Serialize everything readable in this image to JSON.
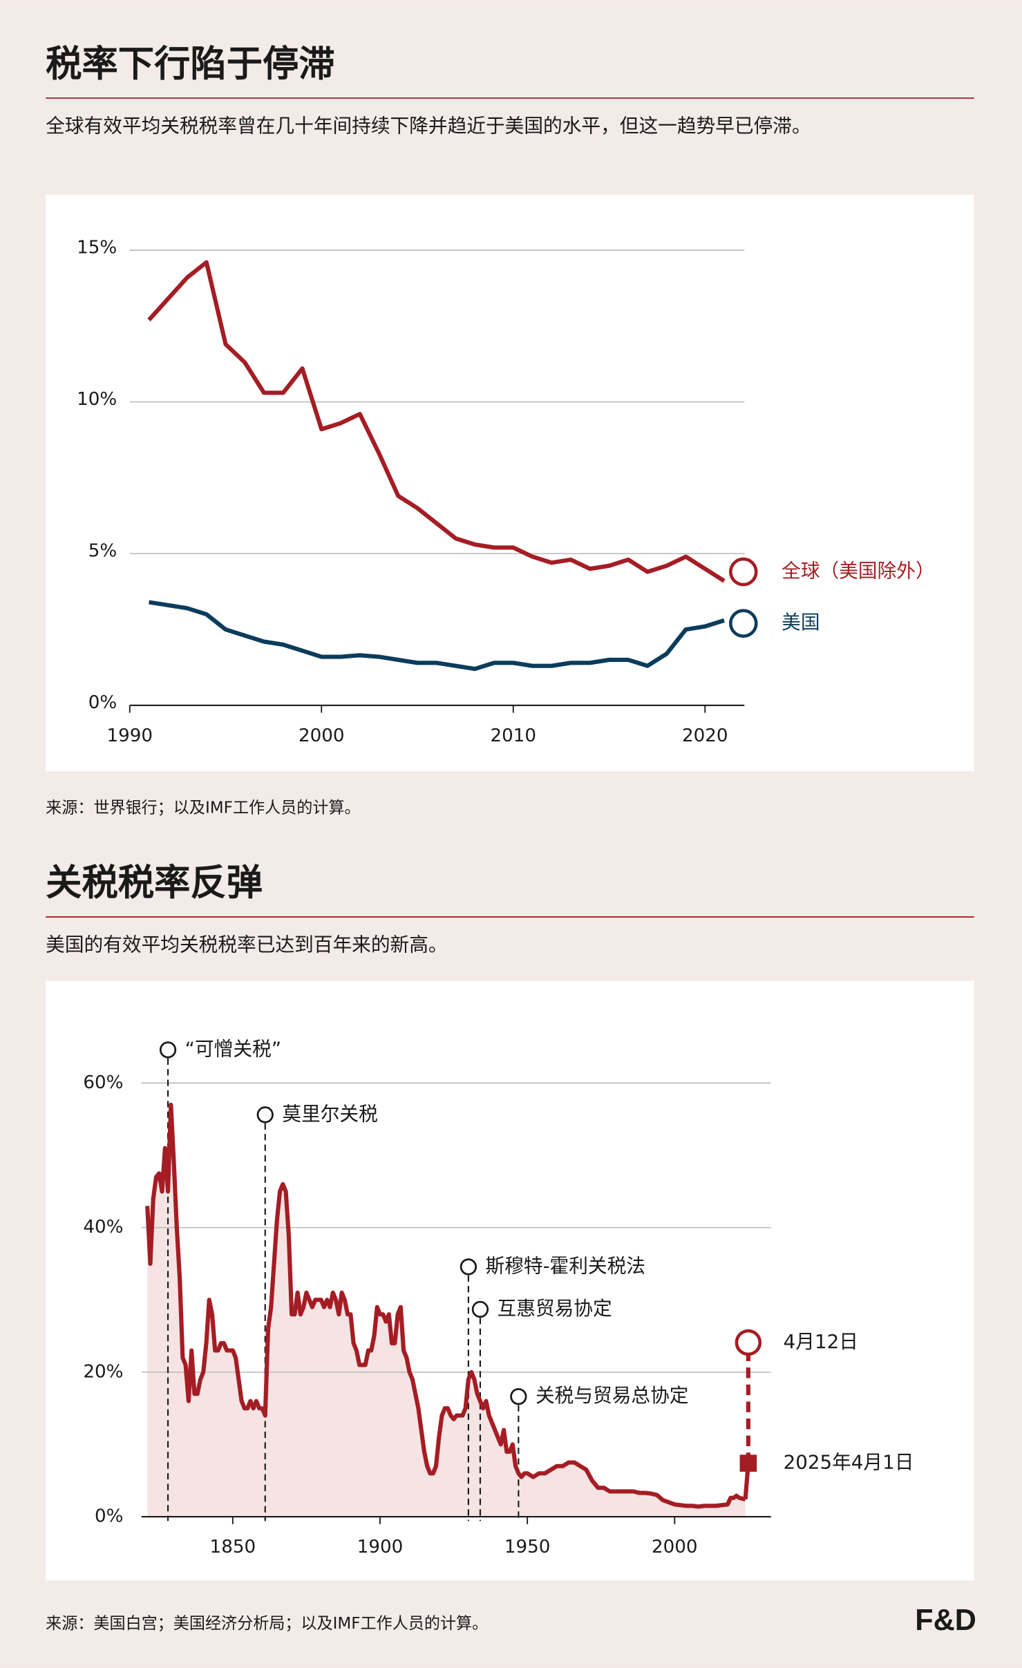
{
  "chart_data": [
    {
      "type": "line",
      "title": "税率下行陷于停滞",
      "subtitle": "全球有效平均关税税率曾在几十年间持续下降并趋近于美国的水平，但这一趋势早已停滞。",
      "source": "来源：世界银行；以及IMF工作人员的计算。",
      "x": [
        1991,
        1992,
        1993,
        1994,
        1995,
        1996,
        1997,
        1998,
        1999,
        2000,
        2001,
        2002,
        2003,
        2004,
        2005,
        2006,
        2007,
        2008,
        2009,
        2010,
        2011,
        2012,
        2013,
        2014,
        2015,
        2016,
        2017,
        2018,
        2019,
        2020,
        2021,
        2022
      ],
      "series": [
        {
          "name": "全球（美国除外）",
          "color": "#a51d24",
          "values": [
            12.7,
            13.4,
            14.1,
            14.6,
            11.9,
            11.3,
            10.3,
            10.3,
            11.1,
            9.1,
            9.3,
            9.6,
            8.3,
            6.9,
            6.5,
            6.0,
            5.5,
            5.3,
            5.2,
            5.2,
            4.9,
            4.7,
            4.8,
            4.5,
            4.6,
            4.8,
            4.4,
            4.6,
            4.9,
            4.5,
            4.1,
            4.4
          ]
        },
        {
          "name": "美国",
          "color": "#0c3c5c",
          "values": [
            3.4,
            3.3,
            3.2,
            3.0,
            2.5,
            2.3,
            2.1,
            2.0,
            1.8,
            1.6,
            1.6,
            1.65,
            1.6,
            1.5,
            1.4,
            1.4,
            1.3,
            1.2,
            1.4,
            1.4,
            1.3,
            1.3,
            1.4,
            1.4,
            1.5,
            1.5,
            1.3,
            1.7,
            2.5,
            2.6,
            2.8,
            2.7
          ]
        }
      ],
      "xlim": [
        1990,
        2022
      ],
      "xticks": [
        1990,
        2000,
        2010,
        2020
      ],
      "ylim": [
        0,
        15
      ],
      "yticks": [
        {
          "value": 0,
          "label": "0%"
        },
        {
          "value": 5,
          "label": "5%"
        },
        {
          "value": 10,
          "label": "10%"
        },
        {
          "value": 15,
          "label": "15%"
        }
      ],
      "grid": true
    },
    {
      "type": "area-line",
      "title": "关税税率反弹",
      "subtitle": "美国的有效平均关税税率已达到百年来的新高。",
      "source": "来源：美国白宫；美国经济分析局；以及IMF工作人员的计算。",
      "color": "#a51d24",
      "fill": "#f6e4e4",
      "x": [
        1821,
        1822,
        1823,
        1824,
        1825,
        1826,
        1827,
        1828,
        1829,
        1830,
        1831,
        1832,
        1833,
        1834,
        1835,
        1836,
        1837,
        1838,
        1839,
        1840,
        1841,
        1842,
        1843,
        1844,
        1845,
        1846,
        1847,
        1848,
        1849,
        1850,
        1851,
        1852,
        1853,
        1854,
        1855,
        1856,
        1857,
        1858,
        1859,
        1860,
        1861,
        1862,
        1863,
        1864,
        1865,
        1866,
        1867,
        1868,
        1869,
        1870,
        1871,
        1872,
        1873,
        1874,
        1875,
        1876,
        1877,
        1878,
        1879,
        1880,
        1881,
        1882,
        1883,
        1884,
        1885,
        1886,
        1887,
        1888,
        1889,
        1890,
        1891,
        1892,
        1893,
        1894,
        1895,
        1896,
        1897,
        1898,
        1899,
        1900,
        1901,
        1902,
        1903,
        1904,
        1905,
        1906,
        1907,
        1908,
        1909,
        1910,
        1911,
        1912,
        1913,
        1914,
        1915,
        1916,
        1917,
        1918,
        1919,
        1920,
        1921,
        1922,
        1923,
        1924,
        1925,
        1926,
        1927,
        1928,
        1929,
        1930,
        1931,
        1932,
        1933,
        1934,
        1935,
        1936,
        1937,
        1938,
        1939,
        1940,
        1941,
        1942,
        1943,
        1944,
        1945,
        1946,
        1947,
        1948,
        1949,
        1950,
        1952,
        1954,
        1956,
        1958,
        1960,
        1962,
        1964,
        1966,
        1968,
        1970,
        1972,
        1974,
        1976,
        1978,
        1980,
        1982,
        1984,
        1986,
        1988,
        1990,
        1992,
        1994,
        1996,
        1998,
        2000,
        2002,
        2004,
        2006,
        2008,
        2010,
        2012,
        2014,
        2016,
        2018,
        2019,
        2020,
        2021,
        2022,
        2023,
        2024
      ],
      "values": [
        43,
        35,
        44,
        47,
        47.5,
        45,
        51,
        45,
        57,
        49,
        40,
        33,
        22,
        21,
        16,
        23,
        17,
        17,
        19,
        20,
        24,
        30,
        28,
        23,
        23,
        24,
        24,
        23,
        23,
        23,
        22,
        19,
        16,
        15,
        15,
        16,
        15,
        16,
        15,
        15,
        14,
        26,
        29,
        35,
        41,
        45,
        46,
        45,
        39,
        28,
        28,
        31,
        28,
        29,
        31,
        30,
        29,
        30,
        30,
        30,
        29,
        30,
        29,
        31,
        30,
        28,
        31,
        30,
        28,
        28,
        24,
        23,
        21,
        21,
        21,
        23,
        23,
        25,
        29,
        28,
        28,
        27,
        28,
        24,
        24,
        28,
        29,
        23,
        22,
        20,
        19,
        17,
        15,
        12,
        9,
        7,
        6,
        6,
        7,
        11,
        14,
        15,
        15,
        14,
        13.5,
        14,
        14,
        14,
        15,
        19,
        20,
        19,
        17,
        16,
        15,
        16,
        14,
        13,
        12,
        11,
        10,
        12,
        9,
        9,
        10,
        7,
        6,
        5.5,
        6,
        6,
        5.5,
        6,
        6,
        6.5,
        7,
        7,
        7.5,
        7.5,
        7,
        6.5,
        5,
        4,
        4,
        3.5,
        3.5,
        3.5,
        3.5,
        3.5,
        3.3,
        3.3,
        3.2,
        3,
        2.3,
        2,
        1.7,
        1.6,
        1.5,
        1.5,
        1.4,
        1.5,
        1.5,
        1.5,
        1.6,
        1.7,
        2.6,
        2.6,
        2.9,
        2.6,
        2.5,
        2.4
      ],
      "markers": [
        {
          "label": "2025年4月1日",
          "x": 2025,
          "value": 7.4
        },
        {
          "label": "4月12日",
          "x": 2025,
          "value": 24.1
        }
      ],
      "annotations": [
        {
          "text": "“可憎关税”",
          "x": 1828
        },
        {
          "text": "莫里尔关税",
          "x": 1861
        },
        {
          "text": "斯穆特-霍利关税法",
          "x": 1930
        },
        {
          "text": "互惠贸易协定",
          "x": 1934
        },
        {
          "text": "关税与贸易总协定",
          "x": 1947
        }
      ],
      "xlim": [
        1819,
        2032
      ],
      "xticks": [
        1850,
        1900,
        1950,
        2000
      ],
      "ylim": [
        0,
        64
      ],
      "yticks": [
        {
          "value": 0,
          "label": "0%"
        },
        {
          "value": 20,
          "label": "20%"
        },
        {
          "value": 40,
          "label": "40%"
        },
        {
          "value": 60,
          "label": "60%"
        }
      ],
      "grid": true
    }
  ],
  "logo": "F&D"
}
